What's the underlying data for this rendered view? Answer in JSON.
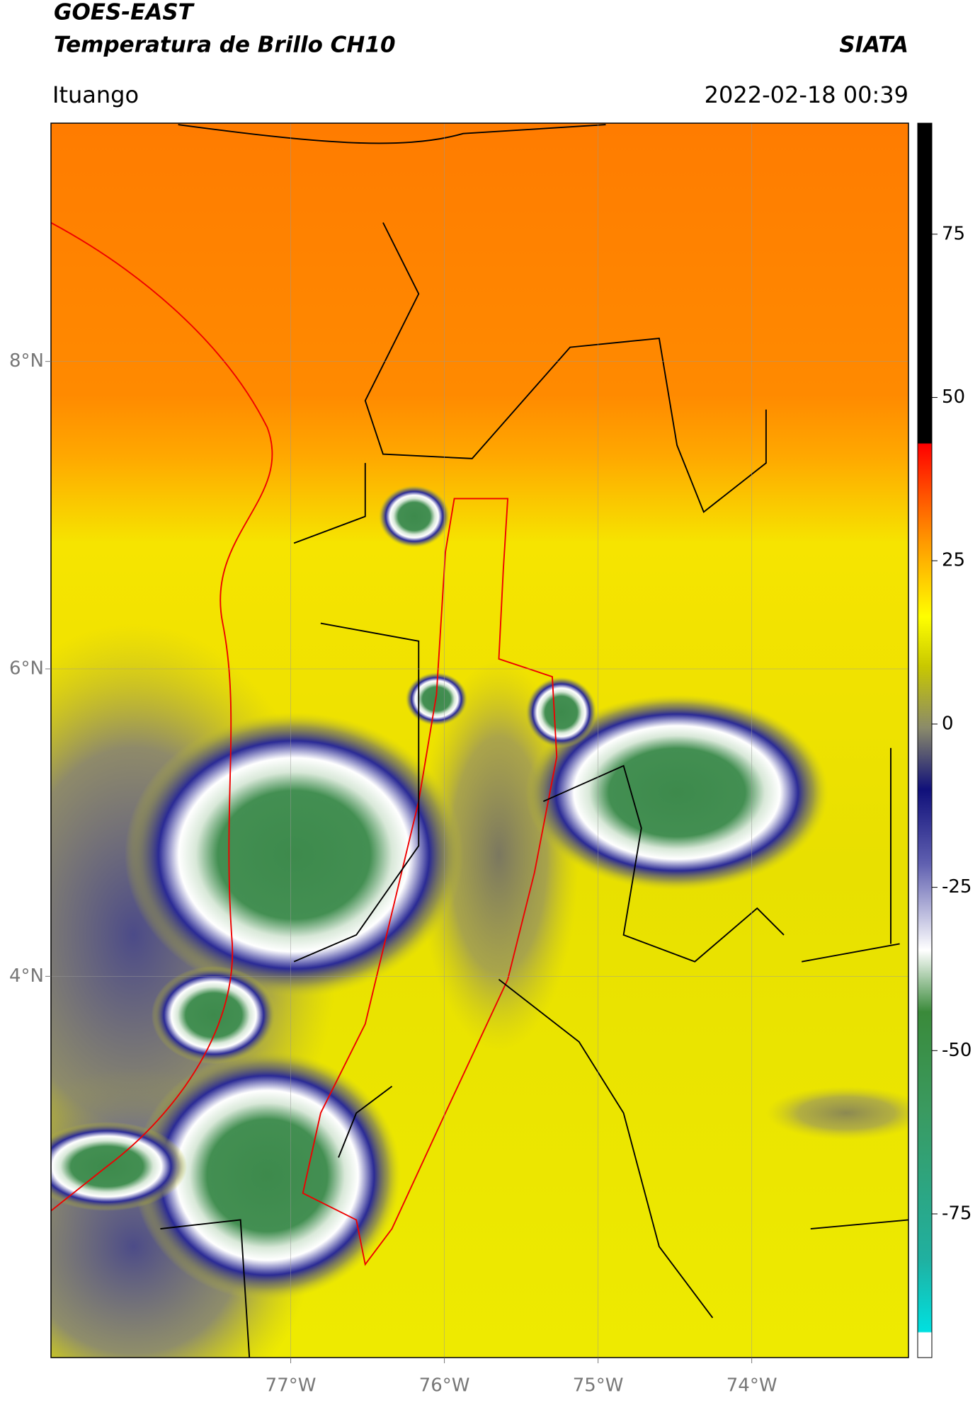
{
  "header": {
    "title": "GOES-EAST",
    "subtitle": "Temperatura de Brillo CH10",
    "source": "SIATA",
    "location": "Ituango",
    "datetime": "2022-02-18 00:39"
  },
  "map": {
    "xlim": [
      -78.56,
      -72.98
    ],
    "ylim": [
      1.52,
      9.55
    ],
    "grid": true,
    "xticks": [
      {
        "value": -77,
        "label": "77°W"
      },
      {
        "value": -76,
        "label": "76°W"
      },
      {
        "value": -75,
        "label": "75°W"
      },
      {
        "value": -74,
        "label": "74°W"
      }
    ],
    "yticks": [
      {
        "value": 8,
        "label": "8°N"
      },
      {
        "value": 6,
        "label": "6°N"
      },
      {
        "value": 4,
        "label": "4°N"
      }
    ]
  },
  "colorbar": {
    "clim": [
      -97,
      92
    ],
    "ticks": [
      75,
      50,
      25,
      0,
      -25,
      -50,
      -75
    ]
  }
}
